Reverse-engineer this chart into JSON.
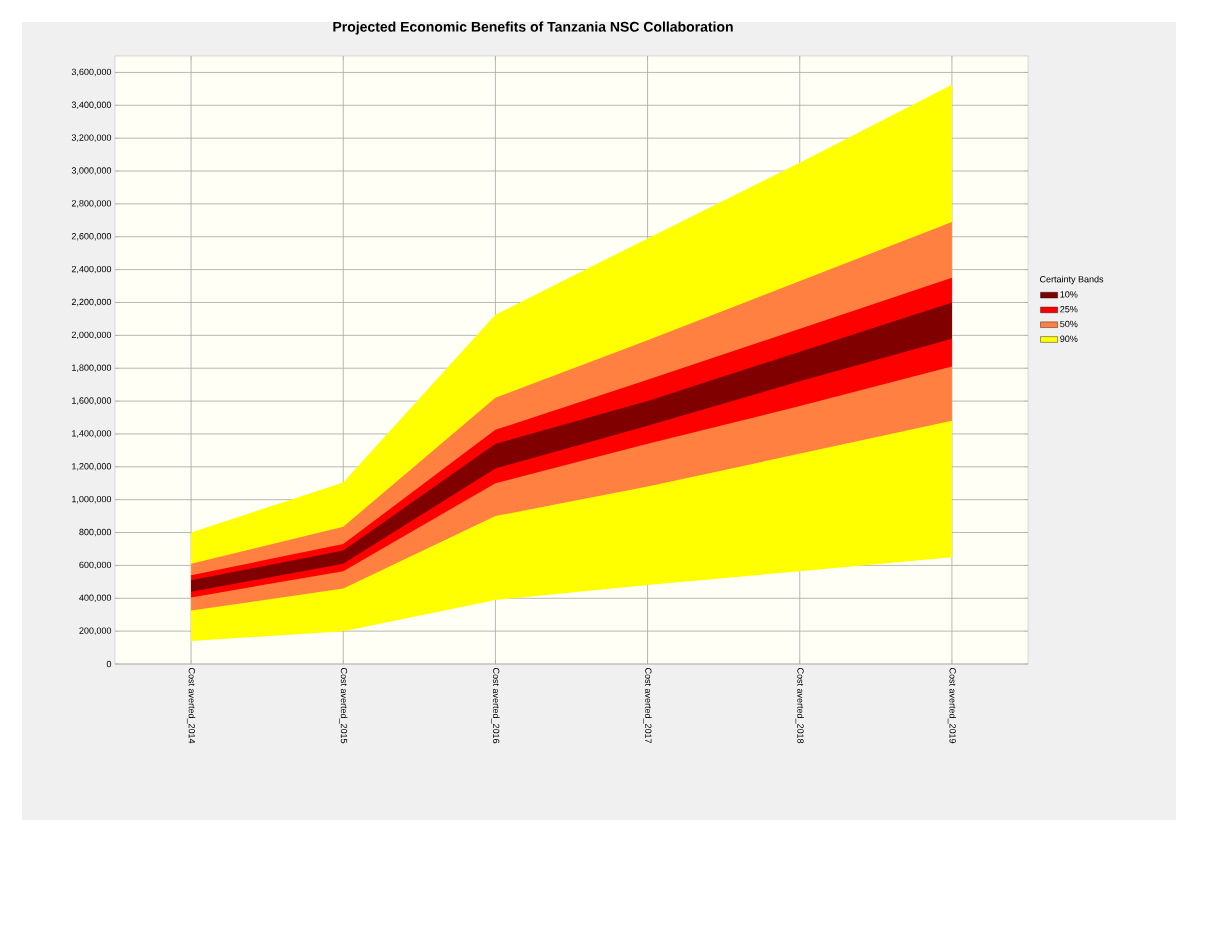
{
  "chart_data": {
    "type": "area",
    "title": "Projected Economic Benefits of Tanzania NSC Collaboration",
    "categories": [
      "Cost averted_2014",
      "Cost averted_2015",
      "Cost averted_2016",
      "Cost averted_2017",
      "Cost averted_2018",
      "Cost averted_2019"
    ],
    "series": [
      {
        "name": "10%",
        "color": "#800000",
        "values": [
          null,
          null,
          null,
          null,
          null,
          null
        ],
        "upper": [
          510000,
          690000,
          1340000,
          1600000,
          1900000,
          2200000
        ],
        "lower": [
          440000,
          610000,
          1190000,
          1450000,
          1720000,
          1980000
        ]
      },
      {
        "name": "25%",
        "color": "#ff0000",
        "values": [
          null,
          null,
          null,
          null,
          null,
          null
        ],
        "upper": [
          540000,
          730000,
          1425000,
          1730000,
          2040000,
          2350000
        ],
        "lower": [
          405000,
          565000,
          1100000,
          1340000,
          1570000,
          1810000
        ]
      },
      {
        "name": "50%",
        "color": "#ff8040",
        "values": [
          null,
          null,
          null,
          null,
          null,
          null
        ],
        "upper": [
          610000,
          835000,
          1620000,
          1970000,
          2330000,
          2690000
        ],
        "lower": [
          325000,
          460000,
          900000,
          1080000,
          1280000,
          1480000
        ]
      },
      {
        "name": "90%",
        "color": "#ffff00",
        "values": [
          null,
          null,
          null,
          null,
          null,
          null
        ],
        "upper": [
          800000,
          1105000,
          2125000,
          2590000,
          3050000,
          3525000
        ],
        "lower": [
          140000,
          200000,
          390000,
          480000,
          565000,
          650000
        ]
      }
    ],
    "ylim": [
      0,
      3700000
    ],
    "yticks": [
      {
        "value": 0,
        "label": "0"
      },
      {
        "value": 200000,
        "label": "200,000"
      },
      {
        "value": 400000,
        "label": "400,000"
      },
      {
        "value": 600000,
        "label": "600,000"
      },
      {
        "value": 800000,
        "label": "800,000"
      },
      {
        "value": 1000000,
        "label": "1,000,000"
      },
      {
        "value": 1200000,
        "label": "1,200,000"
      },
      {
        "value": 1400000,
        "label": "1,400,000"
      },
      {
        "value": 1600000,
        "label": "1,600,000"
      },
      {
        "value": 1800000,
        "label": "1,800,000"
      },
      {
        "value": 2000000,
        "label": "2,000,000"
      },
      {
        "value": 2200000,
        "label": "2,200,000"
      },
      {
        "value": 2400000,
        "label": "2,400,000"
      },
      {
        "value": 2600000,
        "label": "2,600,000"
      },
      {
        "value": 2800000,
        "label": "2,800,000"
      },
      {
        "value": 3000000,
        "label": "3,000,000"
      },
      {
        "value": 3200000,
        "label": "3,200,000"
      },
      {
        "value": 3400000,
        "label": "3,400,000"
      },
      {
        "value": 3600000,
        "label": "3,600,000"
      }
    ],
    "grid": true,
    "legend": "right",
    "legend_title": "Certainty Bands"
  }
}
